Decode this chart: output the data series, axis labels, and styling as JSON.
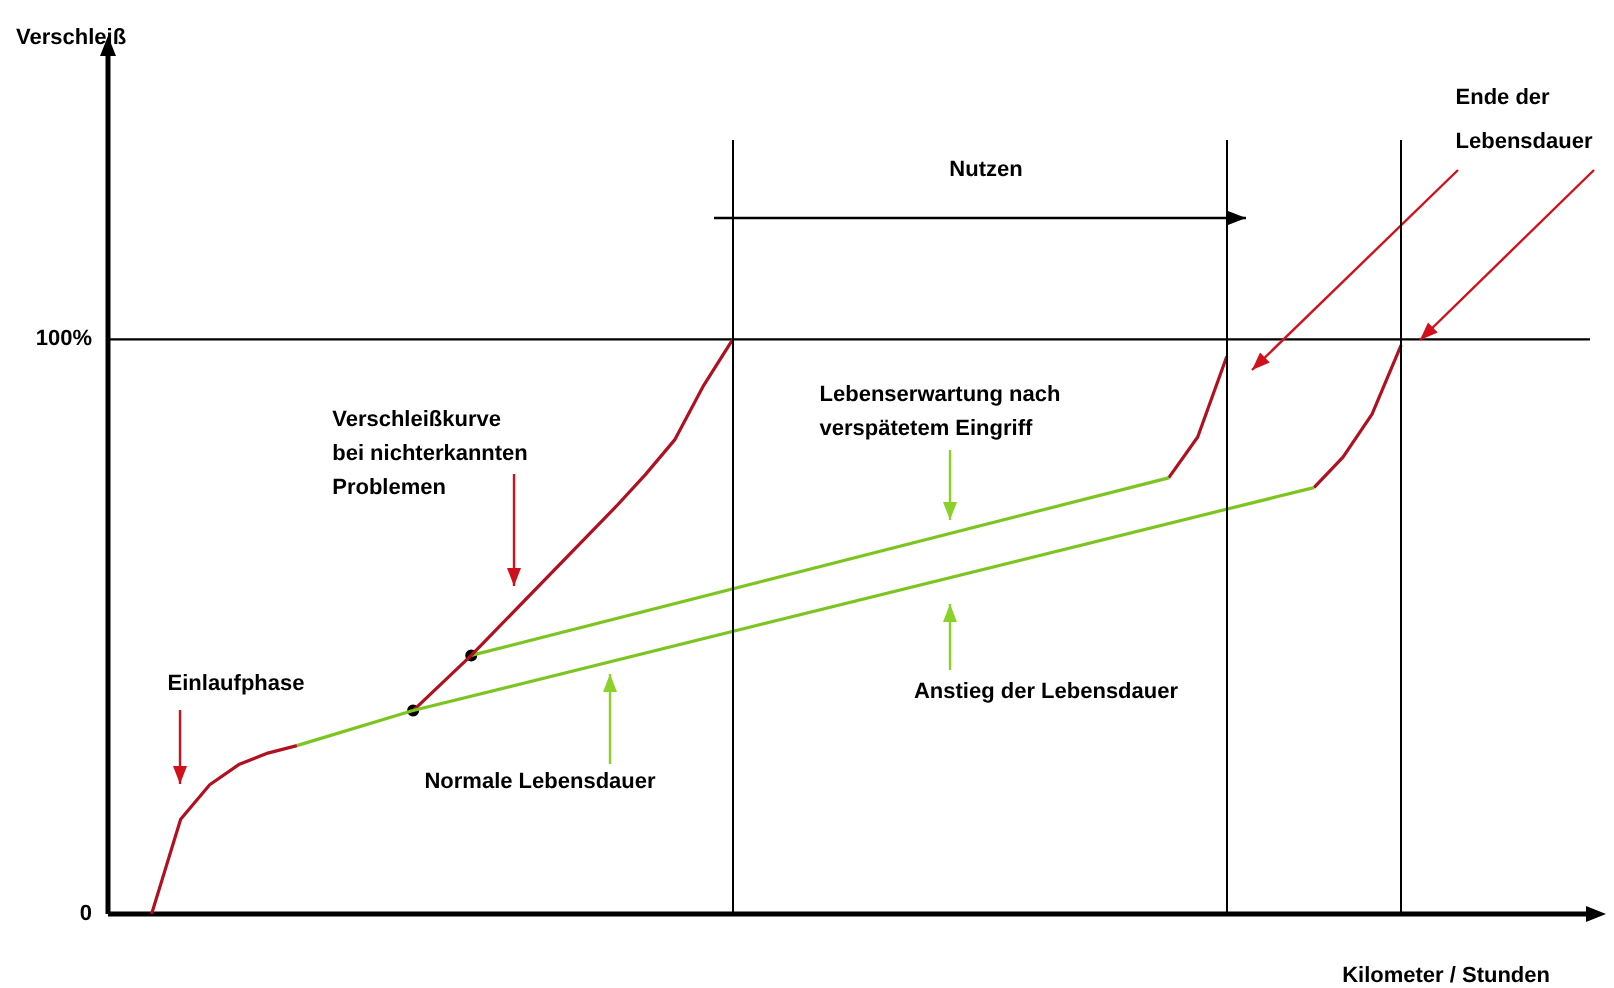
{
  "chart_data": {
    "type": "line",
    "xlabel": "Kilometer / Stunden",
    "ylabel": "Verschleiß",
    "categories": [
      null,
      null,
      null,
      null,
      null,
      null,
      null,
      null,
      null,
      null,
      null,
      null,
      null,
      null,
      null,
      null,
      null,
      null,
      null,
      null,
      null,
      null,
      null,
      null,
      null,
      null,
      null,
      null,
      null,
      null,
      null,
      null,
      null,
      null,
      null,
      null,
      null,
      null,
      null,
      null,
      null,
      null,
      null,
      null,
      null,
      null,
      null,
      null,
      null,
      null,
      null
    ],
    "ylim": [
      0,
      150
    ],
    "yticks": [
      {
        "value": 0,
        "label": "0"
      },
      {
        "value": 100,
        "label": "100%"
      }
    ],
    "tick_labels": "y",
    "grid": false,
    "legend": false,
    "marker": "none",
    "series": [
      {
        "color": "#b01020",
        "values": [
          null,
          0,
          16.5,
          22.5,
          26,
          28,
          29.3,
          null,
          null,
          null,
          null,
          null,
          null,
          null,
          null,
          null,
          null,
          null,
          null,
          null,
          null,
          null,
          null,
          null,
          null,
          null,
          null,
          null,
          null,
          null,
          null,
          null,
          null,
          null,
          null,
          null,
          null,
          null,
          null,
          null,
          null,
          null,
          null,
          null,
          null,
          null,
          null,
          null,
          null,
          null,
          null
        ]
      },
      {
        "color": "#7cc520",
        "values": [
          null,
          null,
          null,
          null,
          null,
          null,
          29.3,
          null,
          null,
          null,
          35.4,
          null,
          null,
          null,
          null,
          null,
          null,
          null,
          null,
          null,
          null,
          null,
          null,
          null,
          null,
          null,
          null,
          null,
          null,
          null,
          null,
          null,
          null,
          null,
          null,
          null,
          null,
          null,
          null,
          null,
          null,
          74.2,
          null,
          null,
          null,
          null,
          null,
          null,
          null,
          null,
          null
        ]
      },
      {
        "color": "#b01020",
        "values": [
          null,
          null,
          null,
          null,
          null,
          null,
          null,
          null,
          null,
          null,
          null,
          null,
          null,
          null,
          null,
          null,
          null,
          null,
          null,
          null,
          null,
          null,
          null,
          null,
          null,
          null,
          null,
          null,
          null,
          null,
          null,
          null,
          null,
          null,
          null,
          null,
          null,
          null,
          null,
          null,
          null,
          74.2,
          79.5,
          87,
          99,
          null,
          null,
          null,
          null,
          null,
          null
        ]
      },
      {
        "color": "#b01020",
        "values": [
          null,
          null,
          null,
          null,
          null,
          null,
          null,
          null,
          null,
          null,
          35.4,
          null,
          45,
          null,
          null,
          null,
          null,
          71,
          76.5,
          82.5,
          92,
          100,
          null,
          null,
          null,
          null,
          null,
          null,
          null,
          null,
          null,
          null,
          null,
          null,
          null,
          null,
          null,
          null,
          null,
          null,
          null,
          null,
          null,
          null,
          null,
          null,
          null,
          null,
          null,
          null,
          null
        ]
      },
      {
        "color": "#7cc520",
        "values": [
          null,
          null,
          null,
          null,
          null,
          null,
          null,
          null,
          null,
          null,
          null,
          null,
          45,
          null,
          null,
          null,
          null,
          null,
          null,
          null,
          null,
          null,
          null,
          null,
          null,
          null,
          null,
          null,
          null,
          null,
          null,
          null,
          null,
          null,
          null,
          null,
          75.9,
          null,
          null,
          null,
          null,
          null,
          null,
          null,
          null,
          null,
          null,
          null,
          null,
          null,
          null
        ]
      },
      {
        "color": "#b01020",
        "values": [
          null,
          null,
          null,
          null,
          null,
          null,
          null,
          null,
          null,
          null,
          null,
          null,
          null,
          null,
          null,
          null,
          null,
          null,
          null,
          null,
          null,
          null,
          null,
          null,
          null,
          null,
          null,
          null,
          null,
          null,
          null,
          null,
          null,
          null,
          null,
          null,
          75.9,
          83,
          97,
          null,
          null,
          null,
          null,
          null,
          null,
          null,
          null,
          null,
          null,
          null,
          null
        ]
      },
      {
        "type": "scatter",
        "marker": "circle",
        "color": "#000000",
        "values": [
          null,
          null,
          null,
          null,
          null,
          null,
          null,
          null,
          null,
          null,
          35.4,
          null,
          45,
          null,
          null,
          null,
          null,
          null,
          null,
          null,
          null,
          null,
          null,
          null,
          null,
          null,
          null,
          null,
          null,
          null,
          null,
          null,
          null,
          null,
          null,
          null,
          null,
          null,
          null,
          null,
          null,
          null,
          null,
          null,
          null,
          null,
          null,
          null,
          null,
          null,
          null
        ]
      }
    ],
    "ref_lines": [
      {
        "axis": "y",
        "value": 100
      }
    ],
    "annotations": [
      "Einlaufphase",
      "Verschleißkurve\nbei nichterkannten\nProblemen",
      "Normale Lebensdauer",
      "Lebenserwartung nach\nverspätetem Eingriff",
      "Anstieg der Lebensdauer",
      "Nutzen",
      "Ende der\nLebensdauer"
    ]
  }
}
